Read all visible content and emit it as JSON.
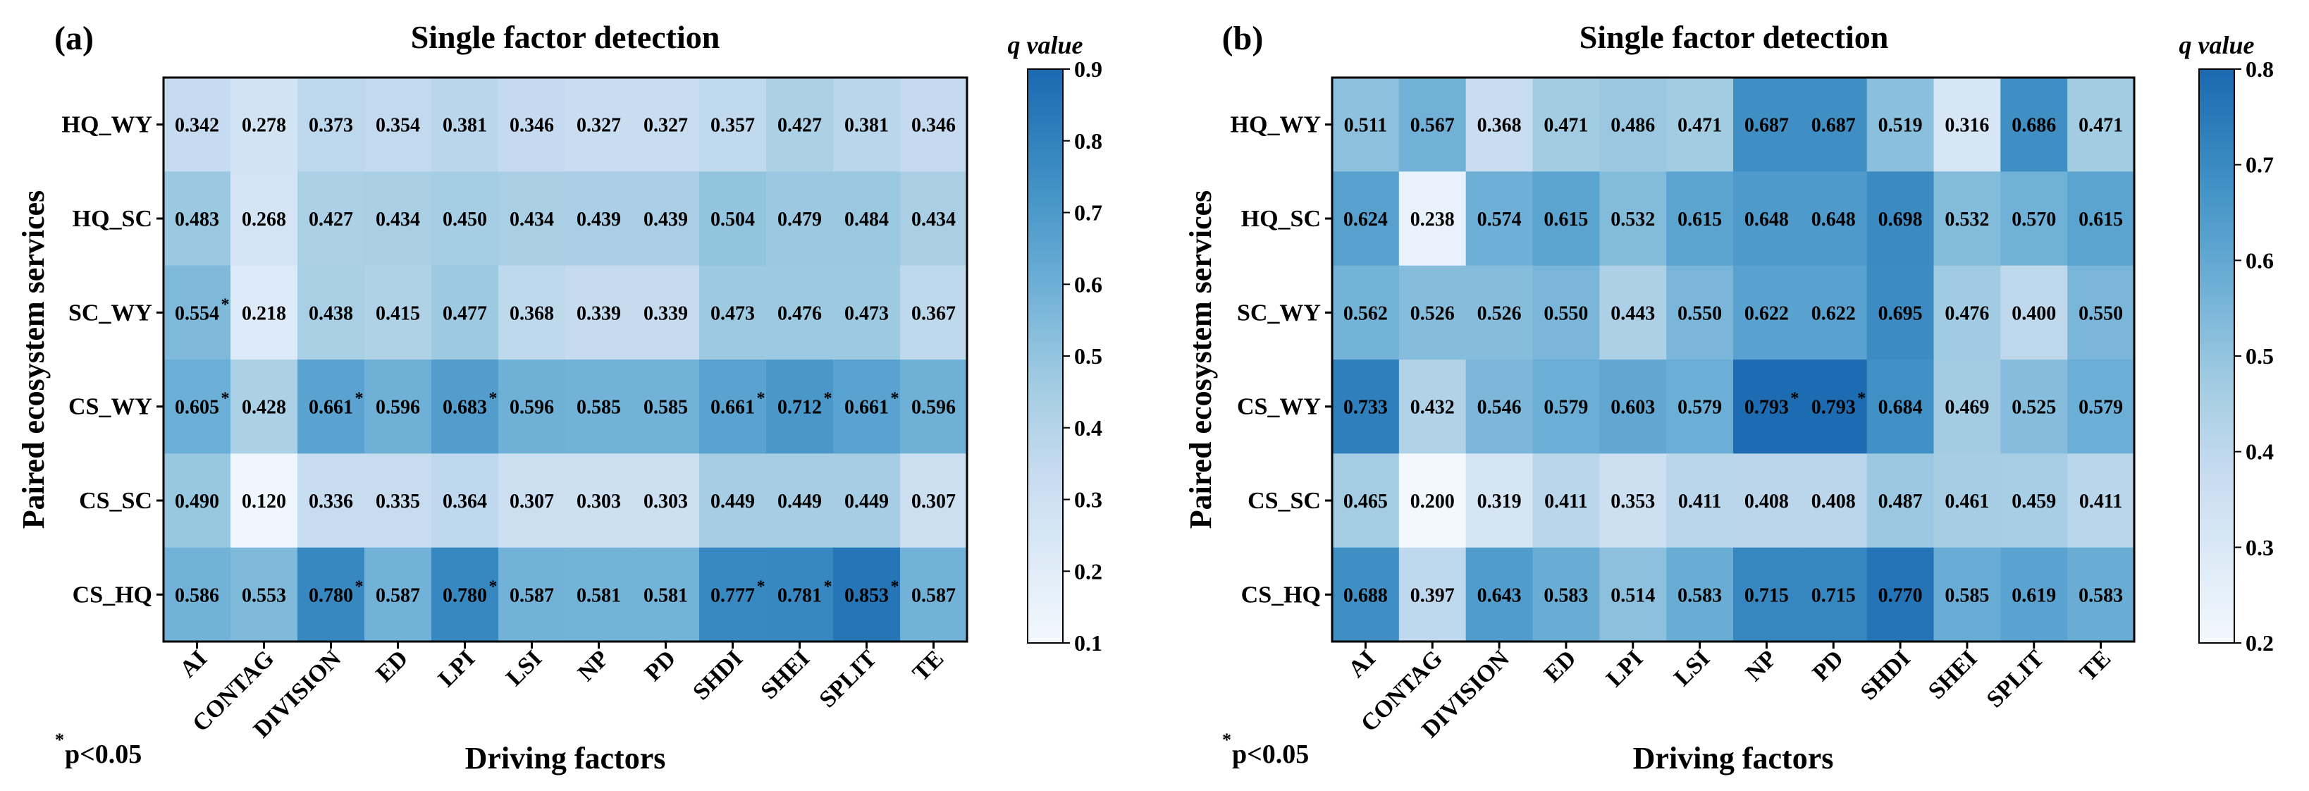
{
  "footnote": {
    "star": "*",
    "text": "p<0.05"
  },
  "chart_data": [
    {
      "type": "heatmap",
      "panel_label": "(a)",
      "title": "Single factor detection",
      "xlabel": "Driving factors",
      "ylabel": "Paired ecosystem services",
      "colorbar_title": "q value",
      "colorbar_range": [
        0.1,
        0.9
      ],
      "colorbar_ticks": [
        "0.1",
        "0.2",
        "0.3",
        "0.4",
        "0.5",
        "0.6",
        "0.7",
        "0.8",
        "0.9"
      ],
      "x_categories": [
        "AI",
        "CONTAG",
        "DIVISION",
        "ED",
        "LPI",
        "LSI",
        "NP",
        "PD",
        "SHDI",
        "SHEI",
        "SPLIT",
        "TE"
      ],
      "y_categories": [
        "HQ_WY",
        "HQ_SC",
        "SC_WY",
        "CS_WY",
        "CS_SC",
        "CS_HQ"
      ],
      "values": [
        [
          "0.342",
          "0.278",
          "0.373",
          "0.354",
          "0.381",
          "0.346",
          "0.327",
          "0.327",
          "0.357",
          "0.427",
          "0.381",
          "0.346"
        ],
        [
          "0.483",
          "0.268",
          "0.427",
          "0.434",
          "0.450",
          "0.434",
          "0.439",
          "0.439",
          "0.504",
          "0.479",
          "0.484",
          "0.434"
        ],
        [
          "0.554",
          "0.218",
          "0.438",
          "0.415",
          "0.477",
          "0.368",
          "0.339",
          "0.339",
          "0.473",
          "0.476",
          "0.473",
          "0.367"
        ],
        [
          "0.605",
          "0.428",
          "0.661",
          "0.596",
          "0.683",
          "0.596",
          "0.585",
          "0.585",
          "0.661",
          "0.712",
          "0.661",
          "0.596"
        ],
        [
          "0.490",
          "0.120",
          "0.336",
          "0.335",
          "0.364",
          "0.307",
          "0.303",
          "0.303",
          "0.449",
          "0.449",
          "0.449",
          "0.307"
        ],
        [
          "0.586",
          "0.553",
          "0.780",
          "0.587",
          "0.780",
          "0.587",
          "0.581",
          "0.581",
          "0.777",
          "0.781",
          "0.853",
          "0.587"
        ]
      ],
      "significant": [
        [
          false,
          false,
          false,
          false,
          false,
          false,
          false,
          false,
          false,
          false,
          false,
          false
        ],
        [
          false,
          false,
          false,
          false,
          false,
          false,
          false,
          false,
          false,
          false,
          false,
          false
        ],
        [
          true,
          false,
          false,
          false,
          false,
          false,
          false,
          false,
          false,
          false,
          false,
          false
        ],
        [
          true,
          false,
          true,
          false,
          true,
          false,
          false,
          false,
          true,
          true,
          true,
          false
        ],
        [
          false,
          false,
          false,
          false,
          false,
          false,
          false,
          false,
          false,
          false,
          false,
          false
        ],
        [
          false,
          false,
          true,
          false,
          true,
          false,
          false,
          false,
          true,
          true,
          true,
          false
        ]
      ]
    },
    {
      "type": "heatmap",
      "panel_label": "(b)",
      "title": "Single factor detection",
      "xlabel": "Driving factors",
      "ylabel": "Paired ecosystem services",
      "colorbar_title": "q value",
      "colorbar_range": [
        0.2,
        0.8
      ],
      "colorbar_ticks": [
        "0.2",
        "0.3",
        "0.4",
        "0.5",
        "0.6",
        "0.7",
        "0.8"
      ],
      "x_categories": [
        "AI",
        "CONTAG",
        "DIVISION",
        "ED",
        "LPI",
        "LSI",
        "NP",
        "PD",
        "SHDI",
        "SHEI",
        "SPLIT",
        "TE"
      ],
      "y_categories": [
        "HQ_WY",
        "HQ_SC",
        "SC_WY",
        "CS_WY",
        "CS_SC",
        "CS_HQ"
      ],
      "values": [
        [
          "0.511",
          "0.567",
          "0.368",
          "0.471",
          "0.486",
          "0.471",
          "0.687",
          "0.687",
          "0.519",
          "0.316",
          "0.686",
          "0.471"
        ],
        [
          "0.624",
          "0.238",
          "0.574",
          "0.615",
          "0.532",
          "0.615",
          "0.648",
          "0.648",
          "0.698",
          "0.532",
          "0.570",
          "0.615"
        ],
        [
          "0.562",
          "0.526",
          "0.526",
          "0.550",
          "0.443",
          "0.550",
          "0.622",
          "0.622",
          "0.695",
          "0.476",
          "0.400",
          "0.550"
        ],
        [
          "0.733",
          "0.432",
          "0.546",
          "0.579",
          "0.603",
          "0.579",
          "0.793",
          "0.793",
          "0.684",
          "0.469",
          "0.525",
          "0.579"
        ],
        [
          "0.465",
          "0.200",
          "0.319",
          "0.411",
          "0.353",
          "0.411",
          "0.408",
          "0.408",
          "0.487",
          "0.461",
          "0.459",
          "0.411"
        ],
        [
          "0.688",
          "0.397",
          "0.643",
          "0.583",
          "0.514",
          "0.583",
          "0.715",
          "0.715",
          "0.770",
          "0.585",
          "0.619",
          "0.583"
        ]
      ],
      "significant": [
        [
          false,
          false,
          false,
          false,
          false,
          false,
          false,
          false,
          false,
          false,
          false,
          false
        ],
        [
          false,
          false,
          false,
          false,
          false,
          false,
          false,
          false,
          false,
          false,
          false,
          false
        ],
        [
          false,
          false,
          false,
          false,
          false,
          false,
          false,
          false,
          false,
          false,
          false,
          false
        ],
        [
          false,
          false,
          false,
          false,
          false,
          false,
          true,
          true,
          false,
          false,
          false,
          false
        ],
        [
          false,
          false,
          false,
          false,
          false,
          false,
          false,
          false,
          false,
          false,
          false,
          false
        ],
        [
          false,
          false,
          false,
          false,
          false,
          false,
          false,
          false,
          false,
          false,
          false,
          false
        ]
      ]
    }
  ]
}
